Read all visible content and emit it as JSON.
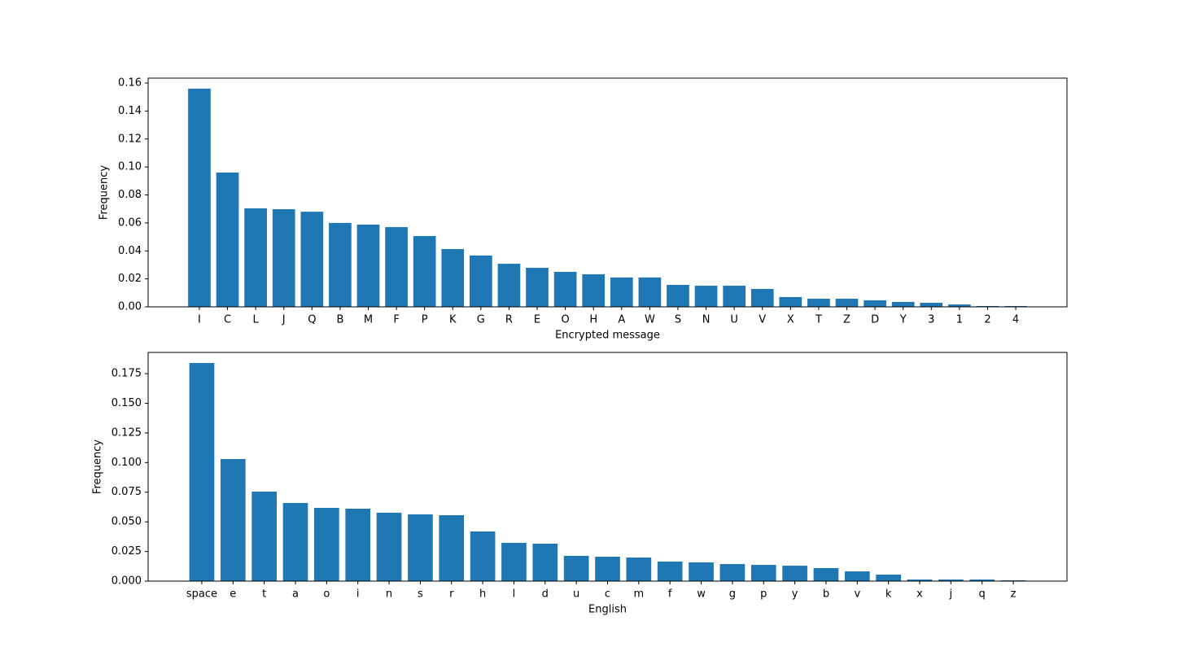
{
  "chart_data": [
    {
      "type": "bar",
      "xlabel": "Encrypted message",
      "ylabel": "Frequency",
      "color": "#1f77b4",
      "categories": [
        "I",
        "C",
        "L",
        "J",
        "Q",
        "B",
        "M",
        "F",
        "P",
        "K",
        "G",
        "R",
        "E",
        "O",
        "H",
        "A",
        "W",
        "S",
        "N",
        "U",
        "V",
        "X",
        "T",
        "Z",
        "D",
        "Y",
        "3",
        "1",
        "2",
        "4"
      ],
      "values": [
        0.156,
        0.096,
        0.0704,
        0.0698,
        0.068,
        0.06,
        0.0588,
        0.057,
        0.0506,
        0.0413,
        0.0367,
        0.0308,
        0.0279,
        0.025,
        0.0233,
        0.021,
        0.021,
        0.0157,
        0.0151,
        0.0151,
        0.0128,
        0.007,
        0.0058,
        0.0058,
        0.0047,
        0.0035,
        0.0029,
        0.0017,
        0.0006,
        0.0006
      ],
      "ylim": [
        0,
        0.1635
      ],
      "yticks": [
        {
          "value": 0,
          "label": "0.00"
        },
        {
          "value": 0.02,
          "label": "0.02"
        },
        {
          "value": 0.04,
          "label": "0.04"
        },
        {
          "value": 0.06,
          "label": "0.06"
        },
        {
          "value": 0.08,
          "label": "0.08"
        },
        {
          "value": 0.1,
          "label": "0.10"
        },
        {
          "value": 0.12,
          "label": "0.12"
        },
        {
          "value": 0.14,
          "label": "0.14"
        },
        {
          "value": 0.16,
          "label": "0.16"
        }
      ]
    },
    {
      "type": "bar",
      "xlabel": "English",
      "ylabel": "Frequency",
      "color": "#1f77b4",
      "categories": [
        "space",
        "e",
        "t",
        "a",
        "o",
        "i",
        "n",
        "s",
        "r",
        "h",
        "l",
        "d",
        "u",
        "c",
        "m",
        "f",
        "w",
        "g",
        "p",
        "y",
        "b",
        "v",
        "k",
        "x",
        "j",
        "q",
        "z"
      ],
      "values": [
        0.184,
        0.103,
        0.0755,
        0.0659,
        0.0618,
        0.0611,
        0.0577,
        0.0563,
        0.0556,
        0.0419,
        0.0323,
        0.0316,
        0.0213,
        0.0206,
        0.0199,
        0.0165,
        0.0158,
        0.0144,
        0.0137,
        0.013,
        0.011,
        0.0082,
        0.0055,
        0.0014,
        0.0014,
        0.0014,
        0.0007
      ],
      "ylim": [
        0,
        0.1929
      ],
      "yticks": [
        {
          "value": 0,
          "label": "0.000"
        },
        {
          "value": 0.025,
          "label": "0.025"
        },
        {
          "value": 0.05,
          "label": "0.050"
        },
        {
          "value": 0.075,
          "label": "0.075"
        },
        {
          "value": 0.1,
          "label": "0.100"
        },
        {
          "value": 0.125,
          "label": "0.125"
        },
        {
          "value": 0.15,
          "label": "0.150"
        },
        {
          "value": 0.175,
          "label": "0.175"
        }
      ]
    }
  ]
}
